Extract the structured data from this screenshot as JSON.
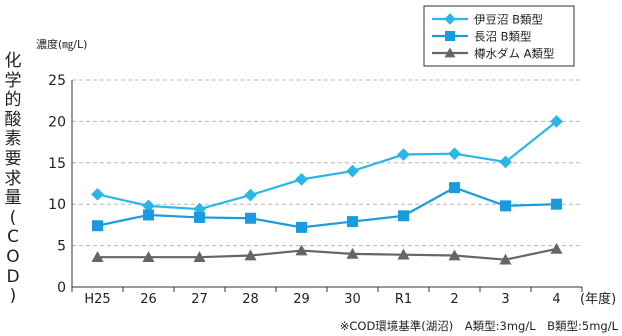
{
  "chart_data": {
    "type": "line",
    "ylabel": "化学的酸素要求量(COD)",
    "unit_label": "濃度(㎎/L)",
    "xlabel": "(年度)",
    "categories": [
      "H25",
      "26",
      "27",
      "28",
      "29",
      "30",
      "R1",
      "2",
      "3",
      "4"
    ],
    "ylim": [
      0,
      25
    ],
    "yticks": [
      0,
      5,
      10,
      15,
      20,
      25
    ],
    "grid": "horizontal dashed",
    "legend_position": "top-right",
    "series": [
      {
        "name": "伊豆沼 B類型",
        "marker": "diamond",
        "color": "#29b6e8",
        "values": [
          11.2,
          9.8,
          9.4,
          11.1,
          13.0,
          14.0,
          16.0,
          16.1,
          15.1,
          20.0
        ]
      },
      {
        "name": "長沼 B類型",
        "marker": "square",
        "color": "#1a9be0",
        "values": [
          7.4,
          8.7,
          8.4,
          8.3,
          7.2,
          7.9,
          8.6,
          12.0,
          9.8,
          10.0
        ]
      },
      {
        "name": "樽水ダム A類型",
        "marker": "triangle",
        "color": "#666666",
        "values": [
          3.6,
          3.6,
          3.6,
          3.8,
          4.4,
          4.0,
          3.9,
          3.8,
          3.3,
          4.6
        ]
      }
    ],
    "footnote": "※COD環境基準(湖沼)　A類型:3mg/L　B類型:5mg/L"
  }
}
